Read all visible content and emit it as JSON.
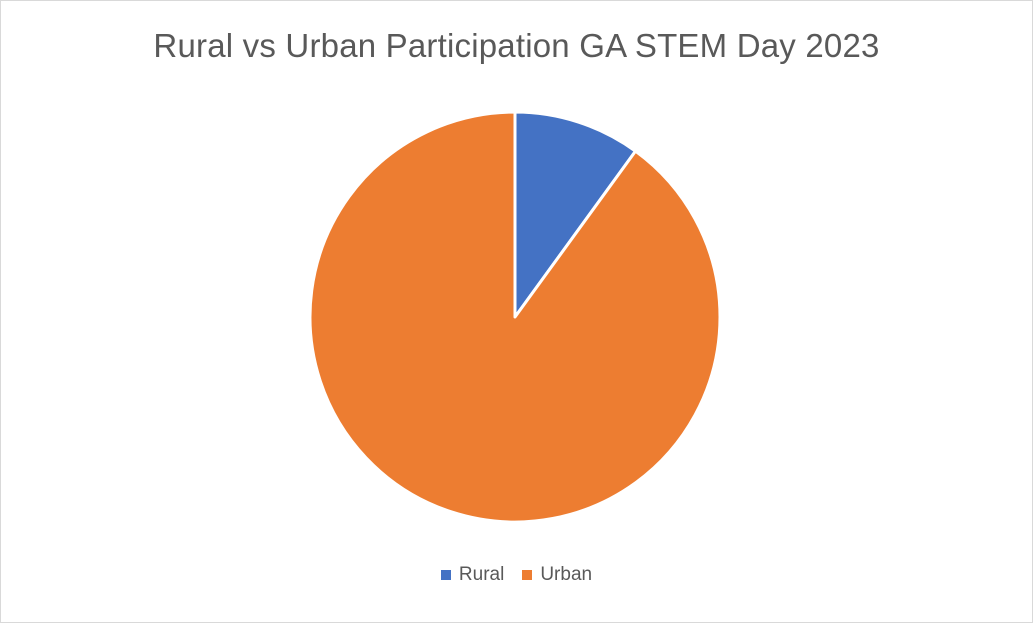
{
  "chart_data": {
    "type": "pie",
    "title": "Rural vs Urban Participation GA STEM Day 2023",
    "categories": [
      "Rural",
      "Urban"
    ],
    "values": [
      10,
      90
    ],
    "colors": [
      "#4472C4",
      "#ED7D31"
    ],
    "start_angle_deg": 0,
    "direction": "clockwise",
    "legend_position": "bottom"
  }
}
